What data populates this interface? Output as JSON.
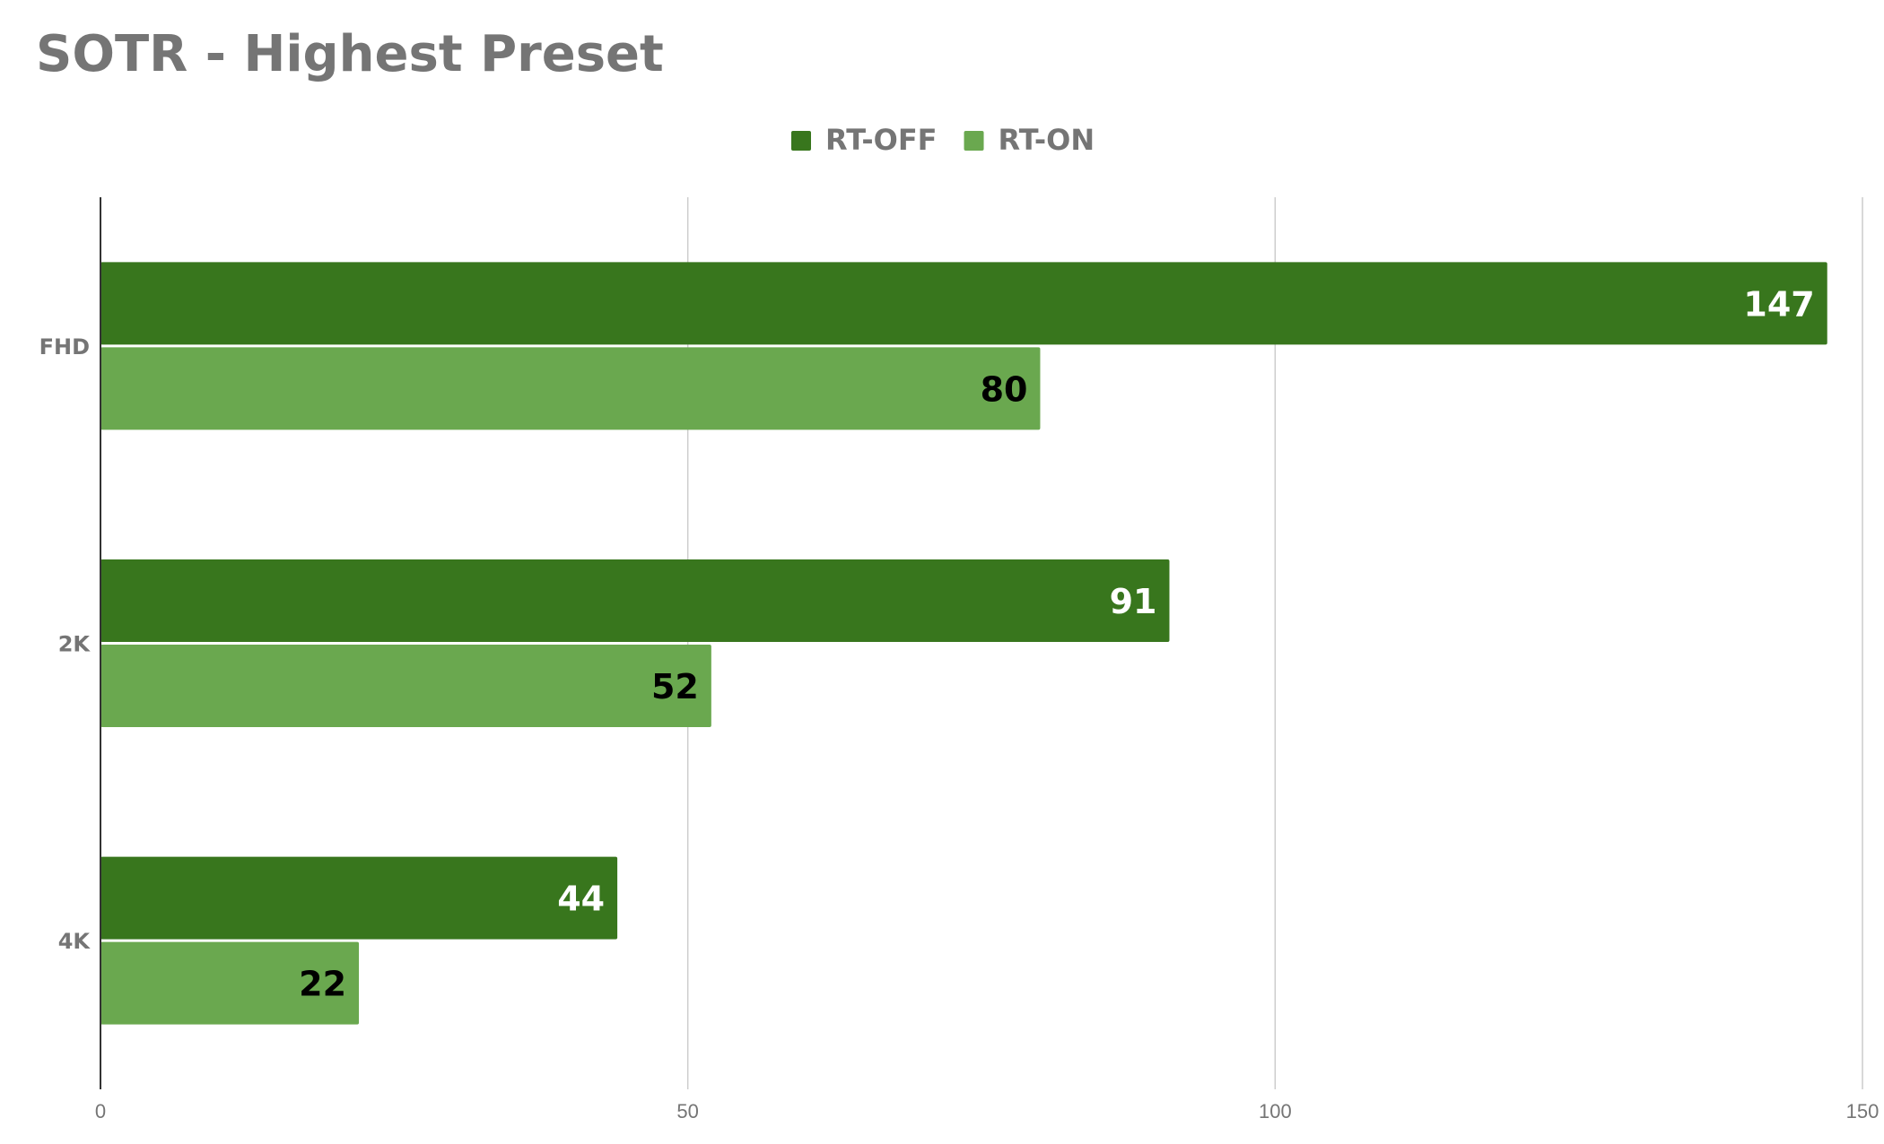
{
  "chart_data": {
    "type": "bar",
    "orientation": "horizontal",
    "title": "SOTR - Highest Preset",
    "xlabel": "",
    "ylabel": "",
    "categories": [
      "FHD",
      "2K",
      "4K"
    ],
    "series": [
      {
        "name": "RT-OFF",
        "values": [
          147,
          91,
          44
        ],
        "color": "#38761d",
        "label_color": "#ffffff"
      },
      {
        "name": "RT-ON",
        "values": [
          80,
          52,
          22
        ],
        "color": "#6aa84f",
        "label_color": "#000000"
      }
    ],
    "xlim": [
      0,
      150
    ],
    "xticks": [
      0,
      50,
      100,
      150
    ],
    "grid": "vertical",
    "legend_position": "top-center",
    "axis_color": "#333333",
    "grid_color": "#cccccc"
  }
}
